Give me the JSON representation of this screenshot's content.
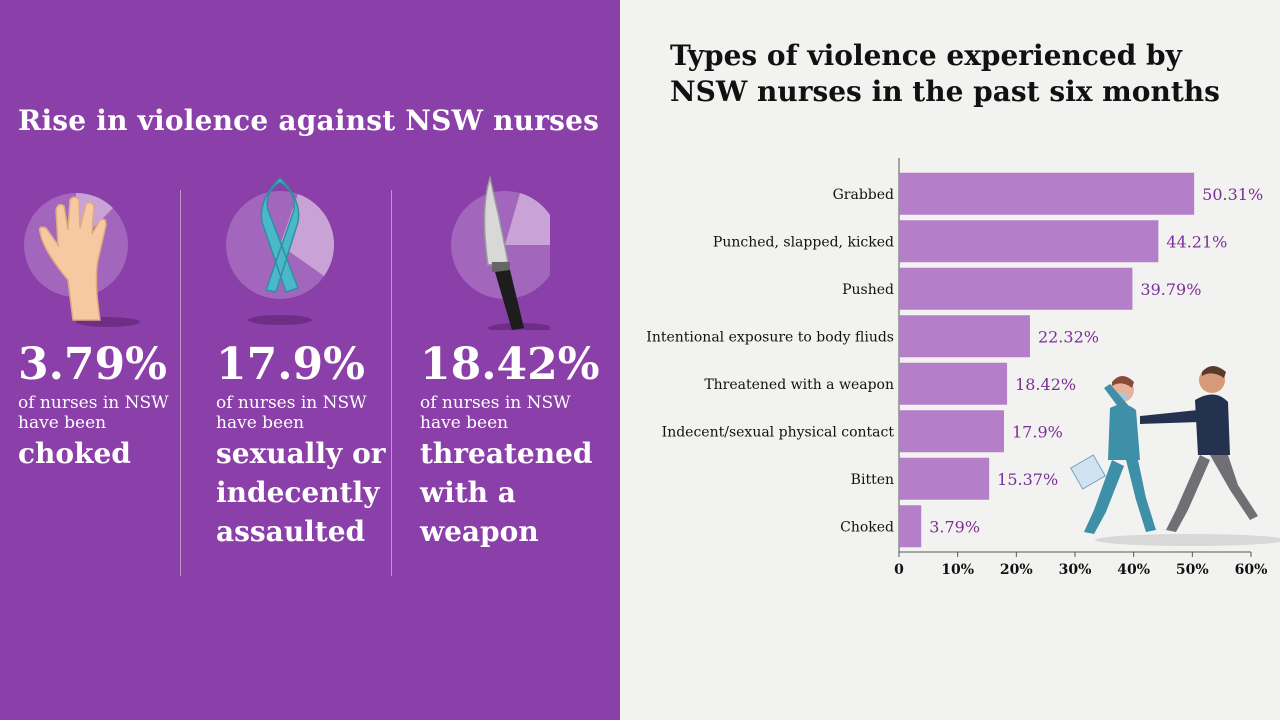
{
  "left_panel": {
    "title": "Rise in violence against NSW nurses",
    "stats": [
      {
        "value": "3.79%",
        "subtitle_line1": "of nurses in NSW",
        "subtitle_line2": "have been",
        "desc_lines": [
          "choked"
        ],
        "icon": "hand-icon"
      },
      {
        "value": "17.9%",
        "subtitle_line1": "of nurses in NSW",
        "subtitle_line2": "have been",
        "desc_lines": [
          "sexually or",
          "indecently",
          "assaulted"
        ],
        "icon": "ribbon-icon"
      },
      {
        "value": "18.42%",
        "subtitle_line1": "of nurses in NSW",
        "subtitle_line2": "have been",
        "desc_lines": [
          "threatened",
          "with a",
          "weapon"
        ],
        "icon": "knife-icon"
      }
    ]
  },
  "colors": {
    "left_bg": "#8b3fa8",
    "bar": "#b57ec8",
    "value_label": "#7a2f96",
    "right_bg": "#f2f2f0"
  },
  "chart_data": {
    "type": "bar",
    "orientation": "horizontal",
    "title_line1": "Types of violence experienced by",
    "title_line2": "NSW nurses in the past six months",
    "categories": [
      "Grabbed",
      "Punched, slapped, kicked",
      "Pushed",
      "Intentional exposure to body fliuds",
      "Threatened with a weapon",
      "Indecent/sexual physical contact",
      "Bitten",
      "Choked"
    ],
    "values": [
      50.31,
      44.21,
      39.79,
      22.32,
      18.42,
      17.9,
      15.37,
      3.79
    ],
    "value_labels": [
      "50.31%",
      "44.21%",
      "39.79%",
      "22.32%",
      "18.42%",
      "17.9%",
      "15.37%",
      "3.79%"
    ],
    "xlim": [
      0,
      60
    ],
    "x_ticks": [
      0,
      10,
      20,
      30,
      40,
      50,
      60
    ],
    "x_tick_labels": [
      "0",
      "10%",
      "20%",
      "30%",
      "40%",
      "50%",
      "60%"
    ],
    "grid": false,
    "legend": "none"
  }
}
